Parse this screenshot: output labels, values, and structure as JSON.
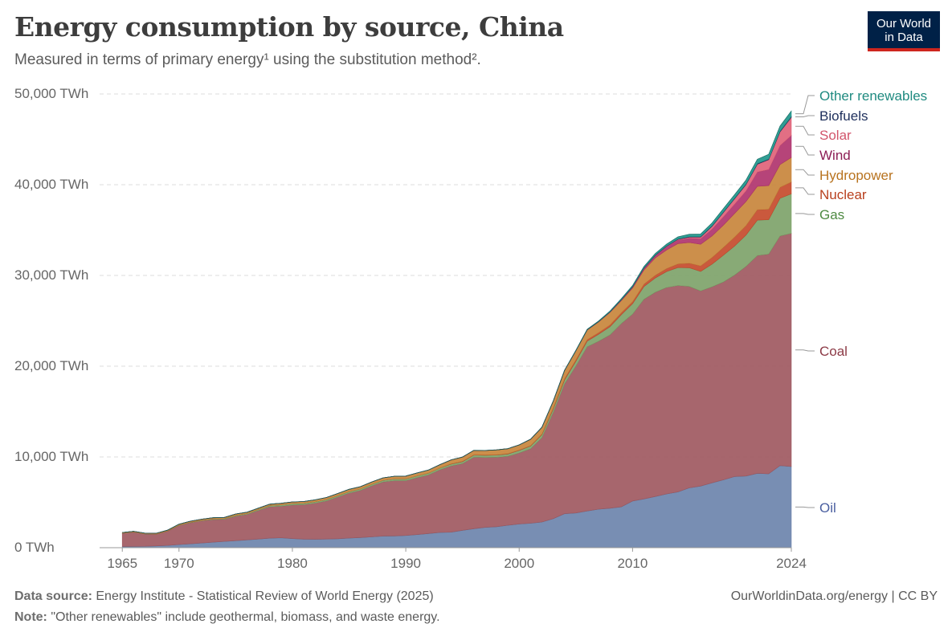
{
  "header": {
    "title": "Energy consumption by source, China",
    "subtitle": "Measured in terms of primary energy¹ using the substitution method².",
    "logo_line1": "Our World",
    "logo_line2": "in Data"
  },
  "footer": {
    "source_label": "Data source:",
    "source_text": "Energy Institute - Statistical Review of World Energy (2025)",
    "note_label": "Note:",
    "note_text": "\"Other renewables\" include geothermal, biomass, and waste energy.",
    "url": "OurWorldinData.org/energy | CC BY"
  },
  "chart_data": {
    "type": "area",
    "stacked": true,
    "x": [
      1965,
      1966,
      1967,
      1968,
      1969,
      1970,
      1971,
      1972,
      1973,
      1974,
      1975,
      1976,
      1977,
      1978,
      1979,
      1980,
      1981,
      1982,
      1983,
      1984,
      1985,
      1986,
      1987,
      1988,
      1989,
      1990,
      1991,
      1992,
      1993,
      1994,
      1995,
      1996,
      1997,
      1998,
      1999,
      2000,
      2001,
      2002,
      2003,
      2004,
      2005,
      2006,
      2007,
      2008,
      2009,
      2010,
      2011,
      2012,
      2013,
      2014,
      2015,
      2016,
      2017,
      2018,
      2019,
      2020,
      2021,
      2022,
      2023,
      2024
    ],
    "x_ticks": [
      "1965",
      "1970",
      "1980",
      "1990",
      "2000",
      "2010",
      "2024"
    ],
    "x_tick_values": [
      1965,
      1970,
      1980,
      1990,
      2000,
      2010,
      2024
    ],
    "y_ticks": [
      "0 TWh",
      "10,000 TWh",
      "20,000 TWh",
      "30,000 TWh",
      "40,000 TWh",
      "50,000 TWh"
    ],
    "y_tick_values": [
      0,
      10000,
      20000,
      30000,
      40000,
      50000
    ],
    "ylim": [
      0,
      50000
    ],
    "xlim": [
      1963,
      2024
    ],
    "grid": true,
    "legend_placement": "right",
    "series": [
      {
        "name": "Oil",
        "color": "#6d84ac",
        "values": [
          130,
          150,
          160,
          200,
          260,
          350,
          430,
          520,
          610,
          700,
          780,
          870,
          960,
          1050,
          1100,
          1010,
          950,
          930,
          960,
          990,
          1060,
          1120,
          1200,
          1280,
          1300,
          1350,
          1450,
          1570,
          1680,
          1720,
          1920,
          2100,
          2250,
          2320,
          2480,
          2620,
          2700,
          2830,
          3200,
          3750,
          3830,
          4050,
          4250,
          4350,
          4500,
          5150,
          5380,
          5650,
          5930,
          6150,
          6600,
          6800,
          7150,
          7480,
          7850,
          7900,
          8200,
          8150,
          9050,
          8950
        ]
      },
      {
        "name": "Coal",
        "color": "#a05961",
        "values": [
          1460,
          1560,
          1350,
          1290,
          1560,
          2100,
          2330,
          2450,
          2490,
          2430,
          2700,
          2800,
          3150,
          3470,
          3480,
          3700,
          3800,
          3990,
          4200,
          4600,
          4970,
          5200,
          5620,
          5980,
          6100,
          6050,
          6280,
          6460,
          6900,
          7300,
          7350,
          7880,
          7700,
          7650,
          7600,
          7820,
          8200,
          9300,
          11700,
          14300,
          16200,
          18100,
          18500,
          19100,
          20200,
          20600,
          22000,
          22500,
          22750,
          22750,
          22200,
          21500,
          21600,
          21800,
          22200,
          23100,
          24000,
          24200,
          25300,
          25700
        ]
      },
      {
        "name": "Gas",
        "color": "#7ea36a",
        "values": [
          20,
          25,
          25,
          25,
          30,
          40,
          50,
          55,
          70,
          80,
          90,
          100,
          110,
          130,
          150,
          160,
          150,
          150,
          150,
          150,
          160,
          160,
          170,
          170,
          180,
          180,
          190,
          190,
          200,
          200,
          210,
          230,
          240,
          240,
          250,
          280,
          300,
          330,
          380,
          440,
          520,
          620,
          770,
          900,
          980,
          1150,
          1400,
          1580,
          1750,
          1980,
          2050,
          2150,
          2500,
          2950,
          3200,
          3450,
          3900,
          3800,
          4150,
          4350
        ]
      },
      {
        "name": "Nuclear",
        "color": "#c54b2c",
        "values": [
          0,
          0,
          0,
          0,
          0,
          0,
          0,
          0,
          0,
          0,
          0,
          0,
          0,
          0,
          0,
          0,
          0,
          0,
          0,
          0,
          0,
          0,
          0,
          0,
          0,
          0,
          0,
          0,
          0,
          40,
          40,
          40,
          40,
          40,
          40,
          50,
          50,
          60,
          120,
          140,
          150,
          160,
          180,
          200,
          210,
          220,
          260,
          290,
          330,
          390,
          500,
          610,
          720,
          850,
          990,
          1050,
          1150,
          1150,
          1220,
          1310
        ]
      },
      {
        "name": "Hydropower",
        "color": "#c8853c",
        "values": [
          60,
          70,
          70,
          75,
          85,
          100,
          110,
          115,
          130,
          130,
          145,
          145,
          140,
          145,
          160,
          170,
          185,
          200,
          220,
          230,
          240,
          250,
          260,
          270,
          290,
          310,
          320,
          340,
          370,
          420,
          470,
          480,
          490,
          530,
          540,
          560,
          700,
          740,
          740,
          900,
          1000,
          1070,
          1180,
          1380,
          1340,
          1500,
          1560,
          1920,
          2050,
          2240,
          2290,
          2380,
          2380,
          2460,
          2600,
          2650,
          2580,
          2600,
          2500,
          2700
        ]
      },
      {
        "name": "Wind",
        "color": "#b0346e",
        "values": [
          0,
          0,
          0,
          0,
          0,
          0,
          0,
          0,
          0,
          0,
          0,
          0,
          0,
          0,
          0,
          0,
          0,
          0,
          0,
          0,
          0,
          0,
          0,
          0,
          0,
          0,
          0,
          0,
          0,
          0,
          0,
          0,
          0,
          0,
          0,
          0,
          0,
          0,
          0,
          0,
          5,
          10,
          20,
          40,
          80,
          120,
          190,
          250,
          360,
          400,
          480,
          610,
          760,
          930,
          1040,
          1170,
          1580,
          1780,
          2100,
          2420
        ]
      },
      {
        "name": "Solar",
        "color": "#e0637a",
        "values": [
          0,
          0,
          0,
          0,
          0,
          0,
          0,
          0,
          0,
          0,
          0,
          0,
          0,
          0,
          0,
          0,
          0,
          0,
          0,
          0,
          0,
          0,
          0,
          0,
          0,
          0,
          0,
          0,
          0,
          0,
          0,
          0,
          0,
          0,
          0,
          0,
          0,
          0,
          0,
          0,
          0,
          0,
          0,
          0,
          0,
          5,
          10,
          20,
          40,
          70,
          110,
          180,
          300,
          460,
          580,
          680,
          850,
          1080,
          1500,
          2000
        ]
      },
      {
        "name": "Biofuels",
        "color": "#1e2f5c",
        "values": [
          0,
          0,
          0,
          0,
          0,
          0,
          0,
          0,
          0,
          0,
          0,
          0,
          0,
          0,
          0,
          0,
          0,
          0,
          0,
          0,
          0,
          0,
          0,
          0,
          0,
          0,
          0,
          0,
          0,
          0,
          0,
          0,
          0,
          0,
          0,
          0,
          5,
          10,
          15,
          20,
          25,
          30,
          30,
          35,
          35,
          40,
          40,
          45,
          45,
          50,
          50,
          55,
          60,
          60,
          65,
          70,
          75,
          75,
          80,
          90
        ]
      },
      {
        "name": "Other renewables",
        "color": "#1f968b",
        "values": [
          0,
          0,
          0,
          0,
          0,
          0,
          0,
          0,
          0,
          0,
          0,
          0,
          0,
          0,
          0,
          0,
          0,
          0,
          0,
          0,
          0,
          0,
          0,
          0,
          0,
          0,
          0,
          0,
          0,
          0,
          0,
          0,
          0,
          0,
          0,
          0,
          0,
          0,
          0,
          0,
          20,
          30,
          50,
          70,
          90,
          110,
          140,
          160,
          200,
          230,
          260,
          280,
          310,
          360,
          390,
          430,
          470,
          520,
          560,
          600
        ]
      }
    ]
  }
}
